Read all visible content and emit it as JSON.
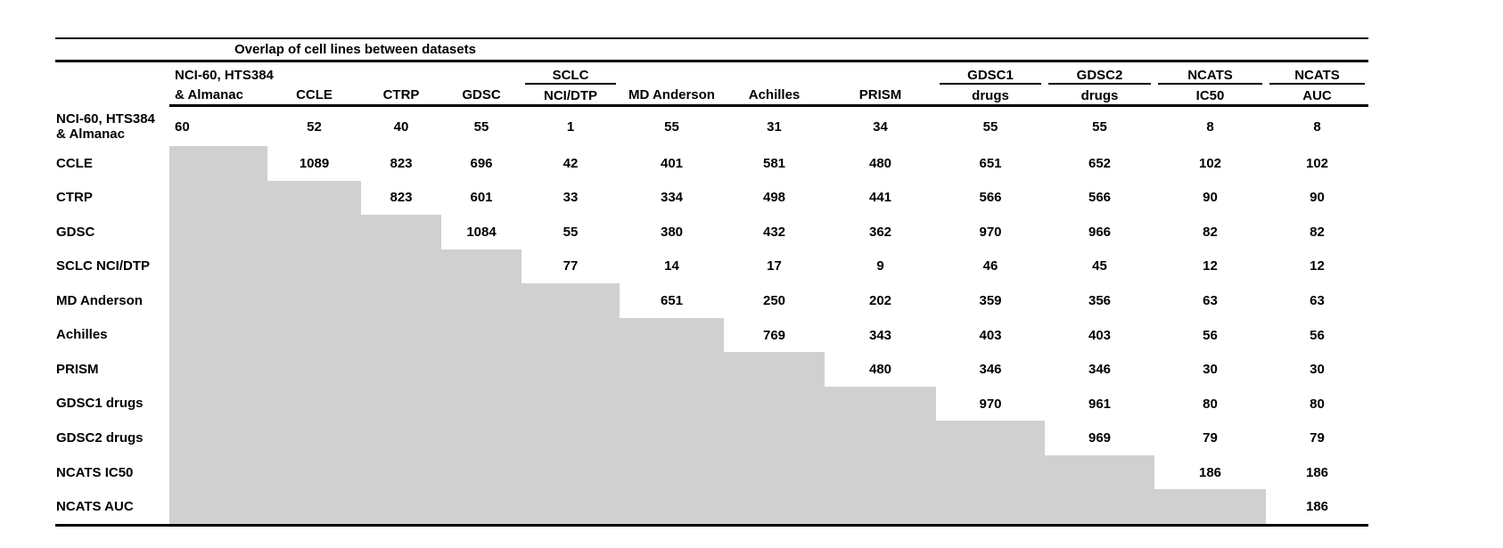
{
  "chart_data": {
    "type": "table",
    "title": "Overlap of cell lines between datasets",
    "columns": [
      {
        "line1": "NCI-60, HTS384",
        "line2": "& Almanac",
        "underline": false
      },
      {
        "line1": "",
        "line2": "CCLE",
        "underline": false
      },
      {
        "line1": "",
        "line2": "CTRP",
        "underline": false
      },
      {
        "line1": "",
        "line2": "GDSC",
        "underline": false
      },
      {
        "line1": "SCLC",
        "line2": "NCI/DTP",
        "underline": true
      },
      {
        "line1": "",
        "line2": "MD Anderson",
        "underline": false
      },
      {
        "line1": "",
        "line2": "Achilles",
        "underline": false
      },
      {
        "line1": "",
        "line2": "PRISM",
        "underline": false
      },
      {
        "line1": "GDSC1",
        "line2": "drugs",
        "underline": true
      },
      {
        "line1": "GDSC2",
        "line2": "drugs",
        "underline": true
      },
      {
        "line1": "NCATS",
        "line2": "IC50",
        "underline": true
      },
      {
        "line1": "NCATS",
        "line2": "AUC",
        "underline": true
      }
    ],
    "row_labels": [
      "NCI-60, HTS384 & Almanac",
      "CCLE",
      "CTRP",
      "GDSC",
      "SCLC NCI/DTP",
      "MD Anderson",
      "Achilles",
      "PRISM",
      "GDSC1 drugs",
      "GDSC2 drugs",
      "NCATS IC50",
      "NCATS AUC"
    ],
    "matrix": [
      [
        60,
        52,
        40,
        55,
        1,
        55,
        31,
        34,
        55,
        55,
        8,
        8
      ],
      [
        null,
        1089,
        823,
        696,
        42,
        401,
        581,
        480,
        651,
        652,
        102,
        102
      ],
      [
        null,
        null,
        823,
        601,
        33,
        334,
        498,
        441,
        566,
        566,
        90,
        90
      ],
      [
        null,
        null,
        null,
        1084,
        55,
        380,
        432,
        362,
        970,
        966,
        82,
        82
      ],
      [
        null,
        null,
        null,
        null,
        77,
        14,
        17,
        9,
        46,
        45,
        12,
        12
      ],
      [
        null,
        null,
        null,
        null,
        null,
        651,
        250,
        202,
        359,
        356,
        63,
        63
      ],
      [
        null,
        null,
        null,
        null,
        null,
        null,
        769,
        343,
        403,
        403,
        56,
        56
      ],
      [
        null,
        null,
        null,
        null,
        null,
        null,
        null,
        480,
        346,
        346,
        30,
        30
      ],
      [
        null,
        null,
        null,
        null,
        null,
        null,
        null,
        null,
        970,
        961,
        80,
        80
      ],
      [
        null,
        null,
        null,
        null,
        null,
        null,
        null,
        null,
        null,
        969,
        79,
        79
      ],
      [
        null,
        null,
        null,
        null,
        null,
        null,
        null,
        null,
        null,
        null,
        186,
        186
      ],
      [
        null,
        null,
        null,
        null,
        null,
        null,
        null,
        null,
        null,
        null,
        null,
        186
      ]
    ],
    "layout": {
      "lower_triangle_fill": "#d0d0d0",
      "text_color": "#000000",
      "background": "#ffffff",
      "grid": "horizontal rules only"
    }
  }
}
